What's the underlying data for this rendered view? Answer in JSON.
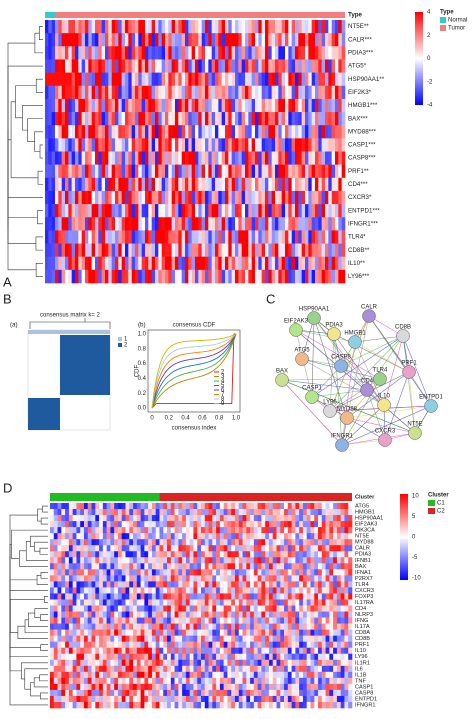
{
  "panel_labels": {
    "a": "A",
    "b": "B",
    "c": "C",
    "d": "D"
  },
  "panel_a": {
    "annotation_header": "Type",
    "genes": [
      "NT5E**",
      "CALR***",
      "PDIA3***",
      "ATG5*",
      "HSP90AA1**",
      "EIF2K3*",
      "HMGB1***",
      "BAX***",
      "MYD88***",
      "CASP1***",
      "CASP8***",
      "PRF1**",
      "CD4***",
      "CXCR3*",
      "ENTPD1***",
      "IFNGR1***",
      "TLR4*",
      "CD8B**",
      "IL10**",
      "LY96***"
    ],
    "scale_ticks": [
      "4",
      "2",
      "0",
      "-2",
      "-4"
    ],
    "legend": {
      "title": "Type",
      "items": [
        "Normal",
        "Tumor"
      ]
    }
  },
  "panel_b": {
    "sub_a": "(a)",
    "matrix_title": "consensus matrix k= 2",
    "matrix_legend": [
      "1",
      "2"
    ],
    "sub_b": "(b)",
    "cdf_title": "consensus CDF",
    "y_label": "CDF",
    "x_label": "consensus index",
    "x_ticks": [
      "0",
      "0.2",
      "0.4",
      "0.6",
      "0.8",
      "1.0"
    ],
    "y_ticks": [
      "0.0",
      "0.2",
      "0.4",
      "0.6",
      "0.8",
      "1.0"
    ],
    "legend": [
      "2",
      "3",
      "4",
      "5",
      "6",
      "7",
      "8",
      "9"
    ]
  },
  "panel_c": {
    "nodes": [
      "HSP90AA1",
      "CALR",
      "EIF2AK3",
      "PDIA3",
      "HMGB1",
      "CD8B",
      "ATG5",
      "BAX",
      "CASP8",
      "PRF1",
      "TLR4",
      "CD4",
      "CASP1",
      "IL10",
      "ENTPD1",
      "LY96",
      "MYD88",
      "NT5E",
      "IFNGR1",
      "CXCR3"
    ]
  },
  "panel_d": {
    "annotation_header": "Cluster",
    "genes": [
      "ATG5",
      "HMGB1",
      "HSP90AA1",
      "EIF2AK3",
      "PIK3CA",
      "NT5E",
      "MYD88",
      "CALR",
      "PDIA3",
      "IFNB1",
      "BAX",
      "IFNA1",
      "P2RX7",
      "TLR4",
      "CXCR3",
      "FOXP3",
      "IL17RA",
      "CD4",
      "NLRP3",
      "IFNG",
      "IL17A",
      "CD8A",
      "CD8B",
      "PRF1",
      "IL10",
      "LY96",
      "IL1R1",
      "IL6",
      "IL1B",
      "TNF",
      "CASP1",
      "CASP8",
      "ENTPD1",
      "IFNGR1"
    ],
    "scale_ticks": [
      "10",
      "5",
      "0",
      "-5",
      "-10"
    ],
    "legend": {
      "title": "Cluster",
      "items": [
        "C1",
        "C2"
      ]
    }
  }
}
